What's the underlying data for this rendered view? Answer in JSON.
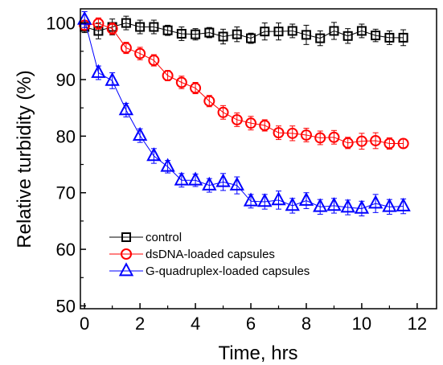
{
  "chart_data": {
    "type": "scatter",
    "xlabel": "Time, hrs",
    "ylabel": "Relative turbidity (%)",
    "xlim": [
      -0.15,
      12.7
    ],
    "ylim": [
      49.5,
      102.5
    ],
    "xticks": [
      0,
      2,
      4,
      6,
      8,
      10,
      12
    ],
    "yticks": [
      50,
      60,
      70,
      80,
      90,
      100
    ],
    "x_tick_labels": [
      "0",
      "2",
      "4",
      "6",
      "8",
      "10",
      "12"
    ],
    "y_tick_labels": [
      "50",
      "60",
      "70",
      "80",
      "90",
      "100"
    ],
    "legend_position": "bottom-left",
    "series": [
      {
        "name": "control",
        "marker": "square",
        "color": "#000000",
        "x": [
          0,
          0.5,
          1,
          1.5,
          2,
          2.5,
          3,
          3.5,
          4,
          4.5,
          5,
          5.5,
          6,
          6.5,
          7,
          7.5,
          8,
          8.5,
          9,
          9.5,
          10,
          10.5,
          11,
          11.5
        ],
        "y": [
          99.3,
          98.6,
          99.3,
          100.0,
          99.3,
          99.3,
          98.7,
          98.1,
          98.0,
          98.3,
          97.6,
          98.0,
          97.3,
          98.5,
          98.5,
          98.6,
          97.9,
          97.3,
          98.6,
          97.7,
          98.6,
          97.8,
          97.4,
          97.4
        ],
        "err": [
          1.0,
          1.4,
          1.4,
          1.2,
          1.2,
          1.2,
          0.9,
          1.2,
          1.0,
          0.9,
          1.3,
          1.3,
          0.9,
          1.5,
          1.5,
          1.2,
          1.7,
          1.3,
          1.5,
          1.3,
          1.2,
          1.1,
          1.2,
          1.4
        ]
      },
      {
        "name": "dsDNA-loaded capsules",
        "marker": "circle",
        "color": "#ff0000",
        "x": [
          0,
          0.5,
          1,
          1.5,
          2,
          2.5,
          3,
          3.5,
          4,
          4.5,
          5,
          5.5,
          6,
          6.5,
          7,
          7.5,
          8,
          8.5,
          9,
          9.5,
          10,
          10.5,
          11,
          11.5
        ],
        "y": [
          99.6,
          99.9,
          99.0,
          95.6,
          94.6,
          93.4,
          90.7,
          89.5,
          88.5,
          86.2,
          84.2,
          82.9,
          82.3,
          81.9,
          80.6,
          80.5,
          80.2,
          79.7,
          79.8,
          78.8,
          79.1,
          79.2,
          78.7,
          78.7
        ],
        "err": [
          0.8,
          1.0,
          1.0,
          1.0,
          1.1,
          1.0,
          0.9,
          1.1,
          1.0,
          1.0,
          1.2,
          1.2,
          1.2,
          1.0,
          1.2,
          1.3,
          1.2,
          1.2,
          1.2,
          1.0,
          1.4,
          1.4,
          1.0,
          0.8
        ]
      },
      {
        "name": "G-quadruplex-loaded capsules",
        "marker": "triangle",
        "color": "#0000ff",
        "x": [
          0,
          0.5,
          1,
          1.5,
          2,
          2.5,
          3,
          3.5,
          4,
          4.5,
          5,
          5.5,
          6,
          6.5,
          7,
          7.5,
          8,
          8.5,
          9,
          9.5,
          10,
          10.5,
          11,
          11.5
        ],
        "y": [
          100.6,
          91.2,
          89.8,
          84.6,
          80.1,
          76.5,
          74.6,
          72.2,
          72.2,
          71.3,
          71.9,
          71.3,
          68.5,
          68.4,
          68.7,
          67.7,
          68.6,
          67.5,
          67.7,
          67.4,
          67.2,
          68.1,
          67.5,
          67.6
        ],
        "err": [
          1.4,
          1.2,
          1.4,
          1.2,
          1.2,
          1.3,
          1.1,
          1.2,
          1.1,
          1.2,
          1.5,
          1.5,
          1.2,
          1.3,
          1.6,
          1.3,
          1.4,
          1.3,
          1.3,
          1.3,
          1.3,
          1.6,
          1.3,
          1.3
        ]
      }
    ]
  }
}
